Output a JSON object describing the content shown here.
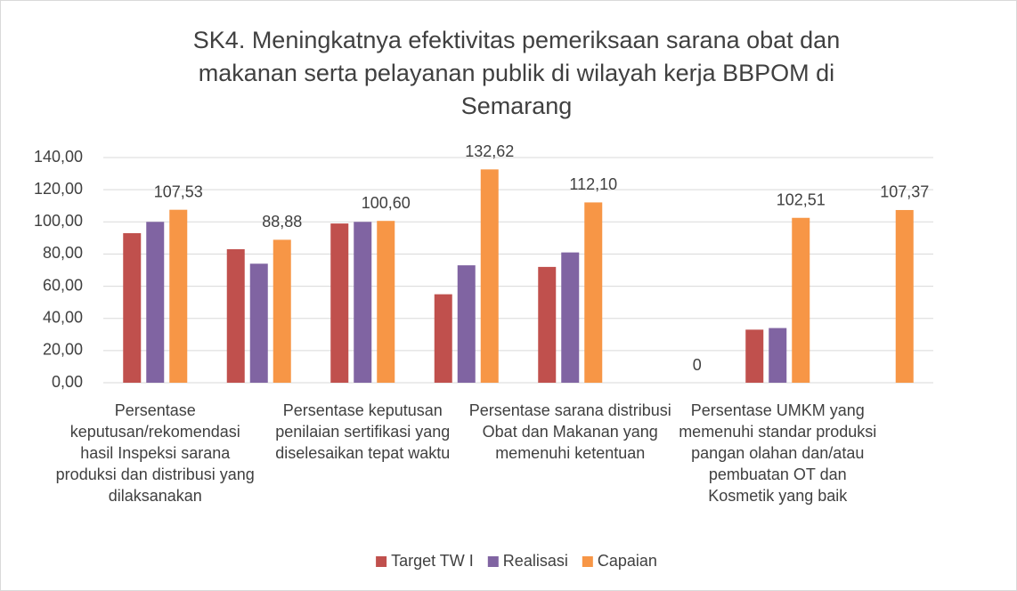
{
  "chart_data": {
    "type": "bar",
    "title_lines": [
      "SK4. Meningkatnya efektivitas pemeriksaan sarana obat dan",
      "makanan serta pelayanan publik di  wilayah kerja BBPOM di",
      "Semarang"
    ],
    "categories": [
      "Persentase keputusan/rekomendasi hasil Inspeksi sarana produksi dan distribusi yang dilaksanakan",
      null,
      "Persentase keputusan penilaian sertifikasi yang diselesaikan tepat waktu",
      null,
      "Persentase sarana distribusi Obat dan Makanan yang memenuhi ketentuan",
      null,
      "Persentase UMKM yang memenuhi standar produksi pangan olahan dan/atau pembuatan OT dan Kosmetik yang baik",
      null
    ],
    "series": [
      {
        "name": "Target TW I",
        "color": "#c0504d",
        "values": [
          93,
          83,
          99,
          55,
          72,
          null,
          33,
          null
        ]
      },
      {
        "name": "Realisasi",
        "color": "#8064a2",
        "values": [
          100,
          74,
          100,
          73,
          81,
          null,
          34,
          null
        ]
      },
      {
        "name": "Capaian",
        "color": "#f79646",
        "values": [
          107.53,
          88.88,
          100.6,
          132.62,
          112.1,
          0,
          102.51,
          107.37
        ],
        "value_labels": [
          "107,53",
          "88,88",
          "100,60",
          "132,62",
          "112,10",
          "0",
          "102,51",
          "107,37"
        ]
      }
    ],
    "ylim": [
      0,
      140
    ],
    "yticks": [
      {
        "value": 0,
        "label": "0,00"
      },
      {
        "value": 20,
        "label": "20,00"
      },
      {
        "value": 40,
        "label": "40,00"
      },
      {
        "value": 60,
        "label": "60,00"
      },
      {
        "value": 80,
        "label": "80,00"
      },
      {
        "value": 100,
        "label": "100,00"
      },
      {
        "value": 120,
        "label": "120,00"
      },
      {
        "value": 140,
        "label": "140,00"
      }
    ],
    "grid": true,
    "legend": "bottom"
  }
}
